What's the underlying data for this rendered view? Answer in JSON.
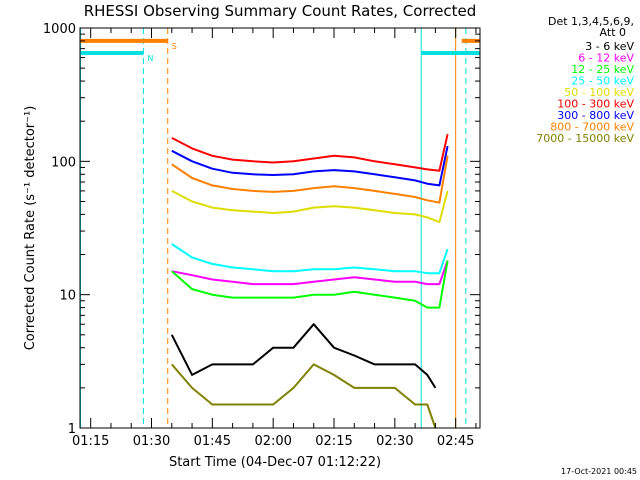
{
  "chart_data": {
    "type": "line",
    "title": "RHESSI Observing Summary Count Rates, Corrected",
    "xlabel": "Start Time (04-Dec-07 01:12:22)",
    "ylabel": "Corrected Count Rate (s⁻¹ detector⁻¹)",
    "y_scale": "log",
    "ylim": [
      1,
      1000
    ],
    "xlim": [
      "01:12:22",
      "02:51:00"
    ],
    "x_ticks": [
      "01:15",
      "01:30",
      "01:45",
      "02:00",
      "02:15",
      "02:30",
      "02:45"
    ],
    "y_ticks": [
      "1",
      "10",
      "100",
      "1000"
    ],
    "grid": false,
    "legend_position": "right",
    "legend_header": [
      "Det 1,3,4,5,6,9,",
      "Att 0"
    ],
    "series": [
      {
        "name": "3 - 6 keV",
        "color": "#000000",
        "x": [
          "01:35",
          "01:40",
          "01:45",
          "01:50",
          "01:55",
          "02:00",
          "02:05",
          "02:10",
          "02:15",
          "02:20",
          "02:25",
          "02:30",
          "02:35",
          "02:38",
          "02:40"
        ],
        "values": [
          5,
          2.5,
          3,
          3,
          3,
          4,
          4,
          6,
          4,
          3.5,
          3,
          3,
          3,
          2.5,
          2
        ]
      },
      {
        "name": "6 - 12 keV",
        "color": "#ff00ff",
        "x": [
          "01:35",
          "01:40",
          "01:45",
          "01:50",
          "01:55",
          "02:00",
          "02:05",
          "02:10",
          "02:15",
          "02:20",
          "02:25",
          "02:30",
          "02:35",
          "02:38",
          "02:41",
          "02:43"
        ],
        "values": [
          15,
          14,
          13,
          12.5,
          12,
          12,
          12,
          12.5,
          13,
          13.5,
          13,
          12.5,
          12.5,
          12,
          12,
          18
        ]
      },
      {
        "name": "12 - 25 keV",
        "color": "#00ff00",
        "x": [
          "01:35",
          "01:40",
          "01:45",
          "01:50",
          "01:55",
          "02:00",
          "02:05",
          "02:10",
          "02:15",
          "02:20",
          "02:25",
          "02:30",
          "02:35",
          "02:38",
          "02:41",
          "02:43"
        ],
        "values": [
          15,
          11,
          10,
          9.5,
          9.5,
          9.5,
          9.5,
          10,
          10,
          10.5,
          10,
          9.5,
          9,
          8,
          8,
          18
        ]
      },
      {
        "name": "25 - 50 keV",
        "color": "#00ffff",
        "x": [
          "01:35",
          "01:40",
          "01:45",
          "01:50",
          "01:55",
          "02:00",
          "02:05",
          "02:10",
          "02:15",
          "02:20",
          "02:25",
          "02:30",
          "02:35",
          "02:38",
          "02:41",
          "02:43"
        ],
        "values": [
          24,
          19,
          17,
          16,
          15.5,
          15,
          15,
          15.5,
          15.5,
          16,
          15.5,
          15,
          15,
          14.5,
          14.5,
          22
        ]
      },
      {
        "name": "50 - 100 keV",
        "color": "#dddd00",
        "x": [
          "01:35",
          "01:40",
          "01:45",
          "01:50",
          "01:55",
          "02:00",
          "02:05",
          "02:10",
          "02:15",
          "02:20",
          "02:25",
          "02:30",
          "02:35",
          "02:38",
          "02:41",
          "02:43"
        ],
        "values": [
          60,
          50,
          45,
          43,
          42,
          41,
          42,
          45,
          46,
          45,
          43,
          41,
          40,
          38,
          35,
          60
        ]
      },
      {
        "name": "100 - 300 keV",
        "color": "#ff0000",
        "x": [
          "01:35",
          "01:40",
          "01:45",
          "01:50",
          "01:55",
          "02:00",
          "02:05",
          "02:10",
          "02:15",
          "02:20",
          "02:25",
          "02:30",
          "02:35",
          "02:38",
          "02:41",
          "02:43"
        ],
        "values": [
          150,
          125,
          110,
          103,
          100,
          98,
          100,
          105,
          110,
          107,
          100,
          95,
          90,
          87,
          85,
          160
        ]
      },
      {
        "name": "300 - 800 keV",
        "color": "#0000ff",
        "x": [
          "01:35",
          "01:40",
          "01:45",
          "01:50",
          "01:55",
          "02:00",
          "02:05",
          "02:10",
          "02:15",
          "02:20",
          "02:25",
          "02:30",
          "02:35",
          "02:38",
          "02:41",
          "02:43"
        ],
        "values": [
          120,
          100,
          88,
          82,
          80,
          79,
          80,
          84,
          86,
          84,
          80,
          76,
          72,
          68,
          66,
          130
        ]
      },
      {
        "name": "800 - 7000 keV",
        "color": "#ff8000",
        "x": [
          "01:35",
          "01:40",
          "01:45",
          "01:50",
          "01:55",
          "02:00",
          "02:05",
          "02:10",
          "02:15",
          "02:20",
          "02:25",
          "02:30",
          "02:35",
          "02:38",
          "02:41",
          "02:43"
        ],
        "values": [
          95,
          75,
          66,
          62,
          60,
          59,
          60,
          63,
          65,
          63,
          60,
          57,
          54,
          51,
          49,
          110
        ]
      },
      {
        "name": "7000 - 15000 keV",
        "color": "#808000",
        "x": [
          "01:35",
          "01:40",
          "01:45",
          "01:50",
          "01:55",
          "02:00",
          "02:05",
          "02:10",
          "02:15",
          "02:20",
          "02:25",
          "02:30",
          "02:35",
          "02:38",
          "02:40"
        ],
        "values": [
          3,
          2,
          1.5,
          1.5,
          1.5,
          1.5,
          2,
          3,
          2.5,
          2,
          2,
          2,
          1.5,
          1.5,
          1
        ]
      }
    ],
    "annotations": [
      {
        "label": "N",
        "color": "#00e0e0",
        "x_start": "01:12:22",
        "x_end": "01:28",
        "y": 650
      },
      {
        "label": "S",
        "color": "#ff8000",
        "x_start": "01:12:22",
        "x_end": "01:34",
        "y": 800
      },
      {
        "label": "",
        "color": "#00e0e0",
        "x_start": "02:36:30",
        "x_end": "02:51:00",
        "y": 650
      },
      {
        "label": "",
        "color": "#ff8000",
        "x_start": "02:46:30",
        "x_end": "02:51:00",
        "y": 800
      }
    ],
    "vertical_lines": [
      {
        "x": "01:12:30",
        "color": "#00e0e0",
        "style": "solid"
      },
      {
        "x": "01:28",
        "color": "#00e0e0",
        "style": "dashed"
      },
      {
        "x": "01:34",
        "color": "#ff8000",
        "style": "dashed"
      },
      {
        "x": "02:36:30",
        "color": "#00e0e0",
        "style": "solid"
      },
      {
        "x": "02:45",
        "color": "#ff8000",
        "style": "solid"
      },
      {
        "x": "02:47:30",
        "color": "#00e0e0",
        "style": "dashed"
      }
    ]
  },
  "footer": {
    "timestamp": "17-Oct-2021 00:45"
  }
}
